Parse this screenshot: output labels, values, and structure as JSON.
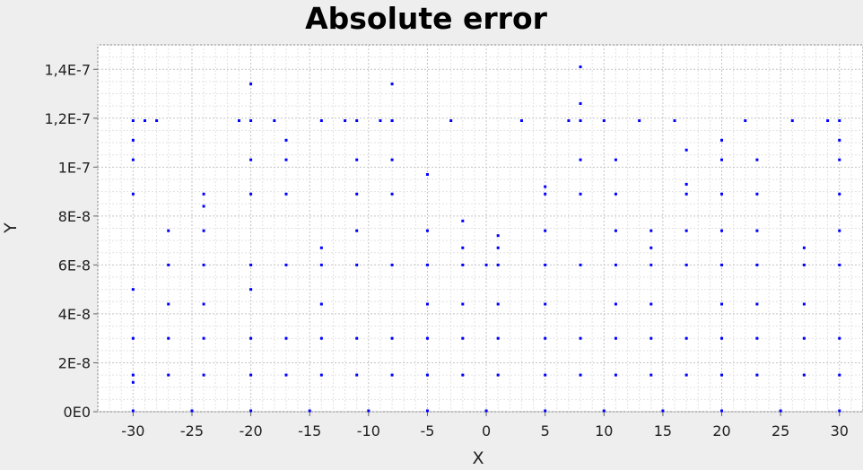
{
  "chart_data": {
    "type": "scatter",
    "title": "Absolute error",
    "xlabel": "X",
    "ylabel": "Y",
    "xlim": [
      -33,
      32
    ],
    "ylim": [
      0,
      1.5e-07
    ],
    "x_ticks": [
      -30,
      -25,
      -20,
      -15,
      -10,
      -5,
      0,
      5,
      10,
      15,
      20,
      25,
      30
    ],
    "x_tick_labels": [
      "-30",
      "-25",
      "-20",
      "-15",
      "-10",
      "-5",
      "0",
      "5",
      "10",
      "15",
      "20",
      "25",
      "30"
    ],
    "y_ticks": [
      0,
      2e-08,
      4e-08,
      6e-08,
      8e-08,
      1e-07,
      1.2e-07,
      1.4e-07
    ],
    "y_tick_labels": [
      "0E0",
      "2E-8",
      "4E-8",
      "6E-8",
      "8E-8",
      "1E-7",
      "1,2E-7",
      "1,4E-7"
    ],
    "grid": true,
    "legend": "none",
    "marker_color": "#0000ff",
    "series": [
      {
        "x": [
          -30,
          -30,
          -30,
          -30,
          -30,
          -30,
          -30,
          -30,
          -29,
          -28,
          -27,
          -27,
          -27,
          -27,
          -27,
          -24,
          -24,
          -24,
          -24,
          -24,
          -24,
          -24,
          -21,
          -20,
          -20,
          -20,
          -20,
          -20,
          -20,
          -20,
          -20,
          -18,
          -17,
          -17,
          -17,
          -17,
          -17,
          -17,
          -14,
          -14,
          -14,
          -14,
          -14,
          -14,
          -12,
          -11,
          -11,
          -11,
          -11,
          -11,
          -11,
          -11,
          -9,
          -8,
          -8,
          -8,
          -8,
          -8,
          -8,
          -8,
          -8,
          -5,
          -5,
          -5,
          -5,
          -5,
          -5,
          -3,
          -2,
          -2,
          -2,
          -2,
          -2,
          -2,
          0,
          1,
          1,
          1,
          1,
          1,
          1,
          3,
          5,
          5,
          5,
          5,
          5,
          5,
          5,
          7,
          8,
          8,
          8,
          8,
          8,
          8,
          8,
          8,
          10,
          11,
          11,
          11,
          11,
          11,
          11,
          11,
          13,
          14,
          14,
          14,
          14,
          14,
          14,
          16,
          17,
          17,
          17,
          17,
          17,
          17,
          17,
          20,
          20,
          20,
          20,
          20,
          20,
          20,
          20,
          22,
          23,
          23,
          23,
          23,
          23,
          23,
          23,
          26,
          27,
          27,
          27,
          27,
          27,
          29,
          30,
          30,
          30,
          30,
          30,
          30,
          30,
          30,
          -30,
          -25,
          -20,
          -15,
          -10,
          -5,
          0,
          5,
          10,
          15,
          20,
          25,
          30
        ],
        "y": [
          1.2e-08,
          1.5e-08,
          3e-08,
          5e-08,
          8.9e-08,
          1.03e-07,
          1.11e-07,
          1.19e-07,
          1.19e-07,
          1.19e-07,
          1.5e-08,
          3e-08,
          4.4e-08,
          6e-08,
          7.4e-08,
          1.5e-08,
          3e-08,
          4.4e-08,
          6e-08,
          7.4e-08,
          8.4e-08,
          8.9e-08,
          1.19e-07,
          1.5e-08,
          3e-08,
          5e-08,
          6e-08,
          8.9e-08,
          1.03e-07,
          1.19e-07,
          1.34e-07,
          1.19e-07,
          1.5e-08,
          3e-08,
          6e-08,
          8.9e-08,
          1.03e-07,
          1.11e-07,
          1.5e-08,
          3e-08,
          4.4e-08,
          6e-08,
          6.7e-08,
          1.19e-07,
          1.19e-07,
          1.5e-08,
          3e-08,
          6e-08,
          7.4e-08,
          8.9e-08,
          1.03e-07,
          1.19e-07,
          1.19e-07,
          1.5e-08,
          3e-08,
          6e-08,
          8.9e-08,
          1.03e-07,
          1.19e-07,
          1.34e-07,
          1.19e-07,
          1.5e-08,
          3e-08,
          4.4e-08,
          6e-08,
          7.4e-08,
          9.7e-08,
          1.19e-07,
          1.5e-08,
          3e-08,
          4.4e-08,
          6e-08,
          6.7e-08,
          7.8e-08,
          6e-08,
          1.5e-08,
          3e-08,
          4.4e-08,
          6e-08,
          6.7e-08,
          7.2e-08,
          1.19e-07,
          1.5e-08,
          3e-08,
          4.4e-08,
          6e-08,
          7.4e-08,
          8.9e-08,
          9.2e-08,
          1.19e-07,
          1.5e-08,
          3e-08,
          6e-08,
          8.9e-08,
          1.03e-07,
          1.19e-07,
          1.26e-07,
          1.41e-07,
          1.19e-07,
          1.5e-08,
          3e-08,
          4.4e-08,
          6e-08,
          7.4e-08,
          8.9e-08,
          1.03e-07,
          1.19e-07,
          1.5e-08,
          3e-08,
          4.4e-08,
          6e-08,
          6.7e-08,
          7.4e-08,
          1.19e-07,
          1.5e-08,
          3e-08,
          6e-08,
          7.4e-08,
          8.9e-08,
          9.3e-08,
          1.07e-07,
          1.5e-08,
          3e-08,
          4.4e-08,
          6e-08,
          7.4e-08,
          8.9e-08,
          1.03e-07,
          1.11e-07,
          1.19e-07,
          1.5e-08,
          3e-08,
          4.4e-08,
          6e-08,
          7.4e-08,
          8.9e-08,
          1.03e-07,
          1.19e-07,
          1.5e-08,
          3e-08,
          4.4e-08,
          6e-08,
          6.7e-08,
          1.19e-07,
          1.5e-08,
          3e-08,
          6e-08,
          7.4e-08,
          8.9e-08,
          1.03e-07,
          1.11e-07,
          1.19e-07,
          0,
          0,
          0,
          0,
          0,
          0,
          0,
          0,
          0,
          0,
          0,
          0,
          0
        ]
      }
    ]
  }
}
